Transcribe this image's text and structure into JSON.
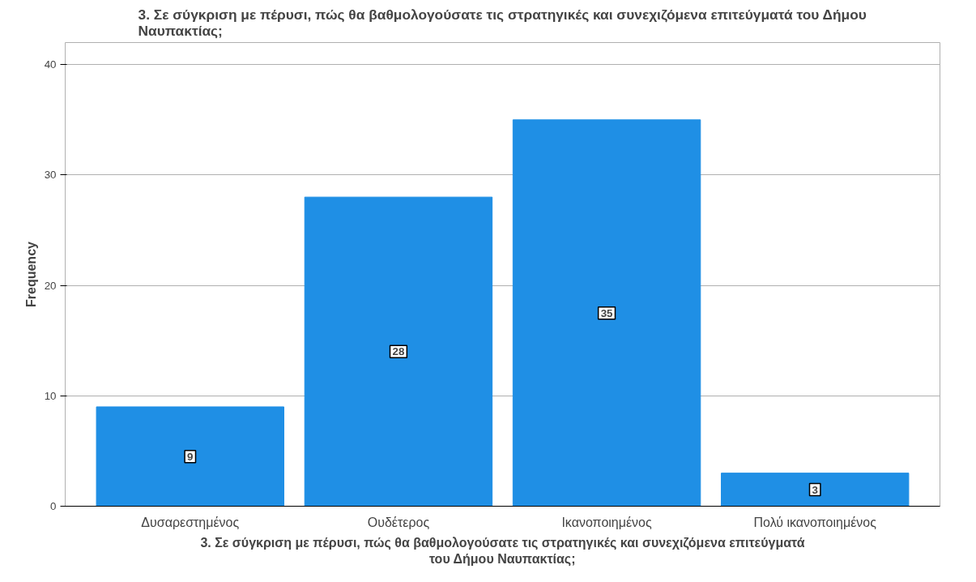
{
  "chart_data": {
    "type": "bar",
    "title": "3. Σε σύγκριση με πέρυσι, πώς θα βαθμολογούσατε τις στρατηγικές και συνεχιζόμενα επιτεύγματά του Δήμου\nΝαυπακτίας;",
    "xlabel": "3. Σε σύγκριση με πέρυσι, πώς θα βαθμολογούσατε τις στρατηγικές και συνεχιζόμενα επιτεύγματά\nτου Δήμου Ναυπακτίας;",
    "ylabel": "Frequency",
    "categories": [
      "Δυσαρεστημένος",
      "Ουδέτερος",
      "Ικανοποιημένος",
      "Πολύ ικανοποιημένος"
    ],
    "values": [
      9,
      28,
      35,
      3
    ],
    "color": "#1f8fe5",
    "ylim": [
      0,
      42
    ],
    "yticks": [
      0,
      10,
      20,
      30,
      40
    ],
    "grid": "y",
    "data_labels": true
  }
}
